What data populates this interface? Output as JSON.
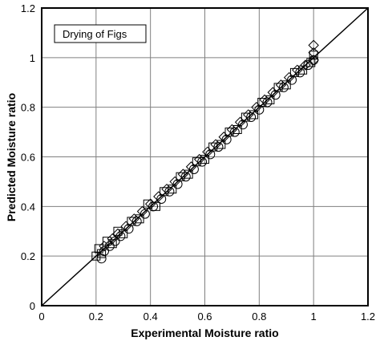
{
  "chart_data": {
    "type": "scatter",
    "title": "",
    "annotation": "Drying of Figs",
    "xlabel": "Experimental Moisture ratio",
    "ylabel": "Predicted Moisture ratio",
    "xlim": [
      0,
      1.2
    ],
    "ylim": [
      0,
      1.2
    ],
    "xticks": [
      "0",
      "0.2",
      "0.4",
      "0.6",
      "0.8",
      "1",
      "1.2"
    ],
    "yticks": [
      "0",
      "0.2",
      "0.4",
      "0.6",
      "0.8",
      "1",
      "1.2"
    ],
    "grid": true,
    "reference_line": {
      "x": [
        0,
        1.2
      ],
      "y": [
        0,
        1.2
      ]
    },
    "colors": {
      "marker": "#000000",
      "grid": "#808080",
      "axis": "#000000"
    },
    "series": [
      {
        "marker": "square",
        "x": [
          0.2,
          0.21,
          0.22,
          0.24,
          0.26,
          0.28,
          0.3,
          0.33,
          0.36,
          0.39,
          0.42,
          0.45,
          0.48,
          0.51,
          0.54,
          0.57,
          0.6,
          0.63,
          0.66,
          0.69,
          0.72,
          0.75,
          0.78,
          0.81,
          0.84,
          0.87,
          0.9,
          0.93,
          0.96,
          0.99,
          1.0
        ],
        "y": [
          0.2,
          0.23,
          0.21,
          0.26,
          0.25,
          0.3,
          0.29,
          0.34,
          0.35,
          0.41,
          0.4,
          0.46,
          0.47,
          0.52,
          0.53,
          0.58,
          0.59,
          0.64,
          0.65,
          0.7,
          0.71,
          0.76,
          0.77,
          0.82,
          0.83,
          0.88,
          0.89,
          0.94,
          0.95,
          0.98,
          1.01
        ]
      },
      {
        "marker": "circle",
        "x": [
          0.22,
          0.23,
          0.25,
          0.27,
          0.29,
          0.32,
          0.35,
          0.38,
          0.41,
          0.44,
          0.47,
          0.5,
          0.53,
          0.56,
          0.59,
          0.62,
          0.65,
          0.68,
          0.71,
          0.74,
          0.77,
          0.8,
          0.83,
          0.86,
          0.89,
          0.92,
          0.95,
          0.98,
          1.0
        ],
        "y": [
          0.19,
          0.22,
          0.24,
          0.26,
          0.28,
          0.31,
          0.34,
          0.37,
          0.4,
          0.43,
          0.46,
          0.49,
          0.52,
          0.55,
          0.58,
          0.61,
          0.64,
          0.67,
          0.7,
          0.73,
          0.76,
          0.79,
          0.82,
          0.85,
          0.88,
          0.91,
          0.94,
          0.97,
          0.99
        ]
      },
      {
        "marker": "diamond",
        "x": [
          0.23,
          0.26,
          0.28,
          0.31,
          0.34,
          0.37,
          0.4,
          0.43,
          0.46,
          0.49,
          0.52,
          0.55,
          0.58,
          0.61,
          0.64,
          0.67,
          0.7,
          0.73,
          0.76,
          0.79,
          0.82,
          0.85,
          0.88,
          0.91,
          0.94,
          0.97,
          1.0,
          1.0,
          1.0
        ],
        "y": [
          0.24,
          0.27,
          0.29,
          0.32,
          0.35,
          0.38,
          0.41,
          0.44,
          0.47,
          0.5,
          0.53,
          0.56,
          0.59,
          0.62,
          0.65,
          0.68,
          0.71,
          0.74,
          0.77,
          0.8,
          0.83,
          0.86,
          0.89,
          0.92,
          0.95,
          0.97,
          1.05,
          1.02,
          0.99
        ]
      }
    ]
  }
}
